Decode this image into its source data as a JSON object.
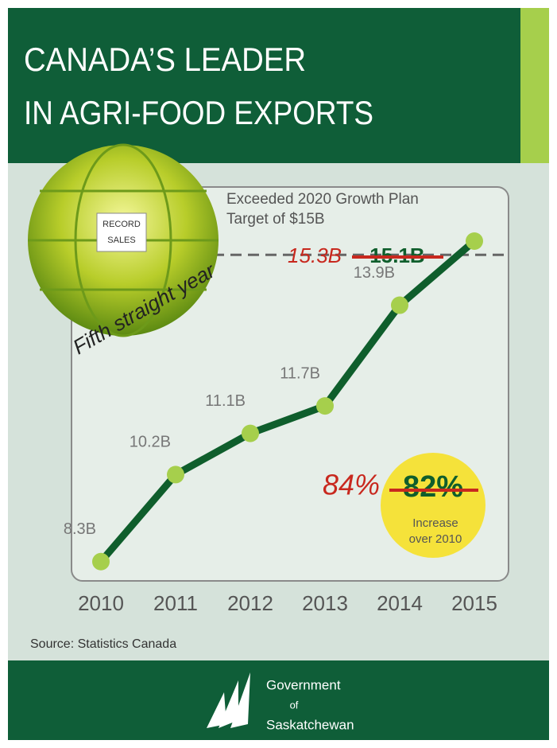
{
  "chart_data": {
    "type": "line",
    "title": [
      "CANADA’S LEADER",
      "IN AGRI-FOOD EXPORTS"
    ],
    "categories": [
      "2010",
      "2011",
      "2012",
      "2013",
      "2014",
      "2015"
    ],
    "series": [
      {
        "name": "Agri-food exports",
        "color": "#0f5e2c",
        "values": [
          8.3,
          10.2,
          11.1,
          11.7,
          13.9,
          15.3
        ],
        "value_labels": [
          "8.3B",
          "10.2B",
          "11.1B",
          "11.7B",
          "13.9B",
          "15.3B"
        ]
      }
    ],
    "ylim": [
      8,
      16
    ],
    "target": 15,
    "target_label": [
      "Exceeded 2020 Growth Plan",
      "Target of $15B"
    ],
    "old_total": "15.1B",
    "new_increase": "84%",
    "old_increase": "82%",
    "increase_note": [
      "Increase",
      "over 2010"
    ],
    "badge": [
      "RECORD",
      "SALES"
    ],
    "badge_caption": "Fifth straight year",
    "source": "Source: Statistics Canada",
    "footer": [
      "Government",
      "of",
      "Saskatchewan"
    ]
  }
}
